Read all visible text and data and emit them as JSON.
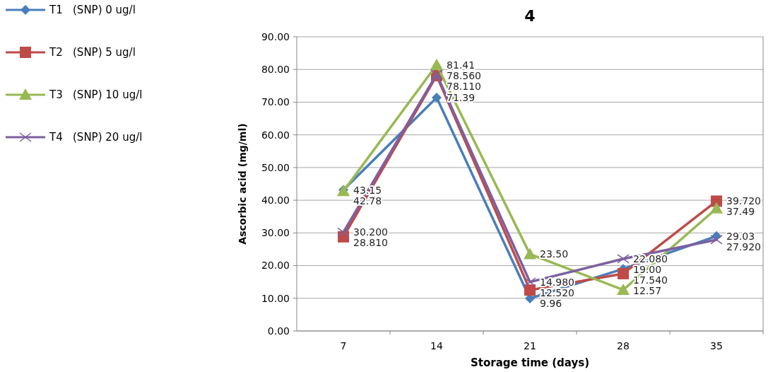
{
  "chart_data": {
    "type": "line",
    "title": "4",
    "xlabel": "Storage time (days)",
    "ylabel": "Ascorbic acid (mg/ml)",
    "categories": [
      "7",
      "14",
      "21",
      "28",
      "35"
    ],
    "ylim": [
      0,
      90
    ],
    "yticks": [
      {
        "value": 0,
        "label": "0.00"
      },
      {
        "value": 10,
        "label": "10.00"
      },
      {
        "value": 20,
        "label": "20.00"
      },
      {
        "value": 30,
        "label": "30.00"
      },
      {
        "value": 40,
        "label": "40.00"
      },
      {
        "value": 50,
        "label": "50.00"
      },
      {
        "value": 60,
        "label": "60.00"
      },
      {
        "value": 70,
        "label": "70.00"
      },
      {
        "value": 80,
        "label": "80.00"
      },
      {
        "value": 90,
        "label": "90.00"
      }
    ],
    "grid": "y",
    "legend": "left",
    "data_labels": true,
    "series": [
      {
        "name": "T1   (SNP) 0 ug/l",
        "color": "#4a7ebb",
        "marker": "diamond",
        "values": [
          43.15,
          71.39,
          9.96,
          19.0,
          29.03
        ],
        "value_labels": [
          "43.15",
          "71.39",
          "9.96",
          "19.00",
          "29.03"
        ]
      },
      {
        "name": "T2   (SNP) 5 ug/l",
        "color": "#be4b48",
        "marker": "square",
        "values": [
          28.81,
          78.11,
          12.52,
          17.54,
          39.72
        ],
        "value_labels": [
          "28.810",
          "78.110",
          "12.520",
          "17.540",
          "39.720"
        ]
      },
      {
        "name": "T3   (SNP) 10 ug/l",
        "color": "#98b954",
        "marker": "triangle",
        "values": [
          42.78,
          81.41,
          23.5,
          12.57,
          37.49
        ],
        "value_labels": [
          "42.78",
          "81.41",
          "23.50",
          "12.57",
          "37.49"
        ]
      },
      {
        "name": "T4   (SNP) 20 ug/l",
        "color": "#7d60a0",
        "marker": "cross",
        "values": [
          30.2,
          78.56,
          14.98,
          22.08,
          27.92
        ],
        "value_labels": [
          "30.200",
          "78.560",
          "14.980",
          "22.080",
          "27.920"
        ]
      }
    ]
  }
}
